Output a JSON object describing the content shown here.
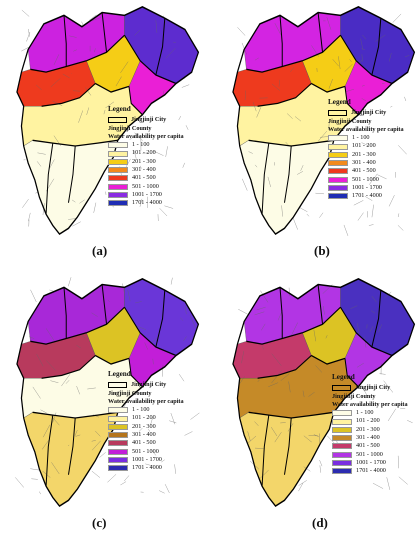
{
  "legend": {
    "title": "Legend",
    "city_label": "Jingjinji City",
    "county_label": "Jingjinji County",
    "scale_title": "Water availability per capita"
  },
  "panels": [
    {
      "id": "a",
      "caption": "(a)",
      "classes": [
        {
          "label": "1 - 100",
          "color": "#fdfce6"
        },
        {
          "label": "101 - 200",
          "color": "#fff3a1"
        },
        {
          "label": "201 - 300",
          "color": "#f5cd16"
        },
        {
          "label": "301 - 400",
          "color": "#f28a1d"
        },
        {
          "label": "401 - 500",
          "color": "#ee3a1e"
        },
        {
          "label": "501 - 1000",
          "color": "#ea1fd6"
        },
        {
          "label": "1001 - 1700",
          "color": "#8a2be2"
        },
        {
          "label": "1701 - 4000",
          "color": "#1f2db4"
        }
      ],
      "region_colors": {
        "north": "#cc22e0",
        "northeast": "#5d2ccf",
        "tianjin": "#ea1fd6",
        "beijing": "#f5cd16",
        "south": "#fdfce6",
        "southmid": "#fff3a1",
        "accent": "#ee3a1e"
      }
    },
    {
      "id": "b",
      "caption": "(b)",
      "classes": [
        {
          "label": "1 - 100",
          "color": "#fdfce6"
        },
        {
          "label": "101 - 200",
          "color": "#fff3a1"
        },
        {
          "label": "201 - 300",
          "color": "#f5cd16"
        },
        {
          "label": "301 - 400",
          "color": "#f28a1d"
        },
        {
          "label": "401 - 500",
          "color": "#ee3a1e"
        },
        {
          "label": "501 - 1000",
          "color": "#ea1fd6"
        },
        {
          "label": "1001 - 1700",
          "color": "#8a2be2"
        },
        {
          "label": "1701 - 4000",
          "color": "#1f2db4"
        }
      ],
      "region_colors": {
        "north": "#d324e2",
        "northeast": "#4a2cc4",
        "tianjin": "#ea1fd6",
        "beijing": "#f5cd16",
        "south": "#fdfce6",
        "southmid": "#fff3a1",
        "accent": "#ee3a1e"
      }
    },
    {
      "id": "c",
      "caption": "(c)",
      "classes": [
        {
          "label": "1 - 100",
          "color": "#fdfce6"
        },
        {
          "label": "101 - 200",
          "color": "#fff3a1"
        },
        {
          "label": "201 - 300",
          "color": "#dcc324"
        },
        {
          "label": "301 - 400",
          "color": "#b5751d"
        },
        {
          "label": "401 - 500",
          "color": "#b83a5d"
        },
        {
          "label": "501 - 1000",
          "color": "#c21ed8"
        },
        {
          "label": "1001 - 1700",
          "color": "#7a2de0"
        },
        {
          "label": "1701 - 4000",
          "color": "#2c2cb0"
        }
      ],
      "region_colors": {
        "north": "#a828d8",
        "northeast": "#6a36d8",
        "tianjin": "#c21ed8",
        "beijing": "#dcc324",
        "south": "#f3d66a",
        "southmid": "#fdfce6",
        "accent": "#b83a5d"
      }
    },
    {
      "id": "d",
      "caption": "(d)",
      "classes": [
        {
          "label": "1 - 100",
          "color": "#fdfce6"
        },
        {
          "label": "101 - 200",
          "color": "#fff3a1"
        },
        {
          "label": "201 - 300",
          "color": "#dcc324"
        },
        {
          "label": "301 - 400",
          "color": "#c58a28"
        },
        {
          "label": "401 - 500",
          "color": "#c43a6a"
        },
        {
          "label": "501 - 1000",
          "color": "#b235e4"
        },
        {
          "label": "1001 - 1700",
          "color": "#7a2de0"
        },
        {
          "label": "1701 - 4000",
          "color": "#2c2cb0"
        }
      ],
      "region_colors": {
        "north": "#b235e4",
        "northeast": "#4a30c0",
        "tianjin": "#b235e4",
        "beijing": "#dcc324",
        "south": "#f3d66a",
        "southmid": "#c58a28",
        "accent": "#c43a6a"
      }
    }
  ]
}
